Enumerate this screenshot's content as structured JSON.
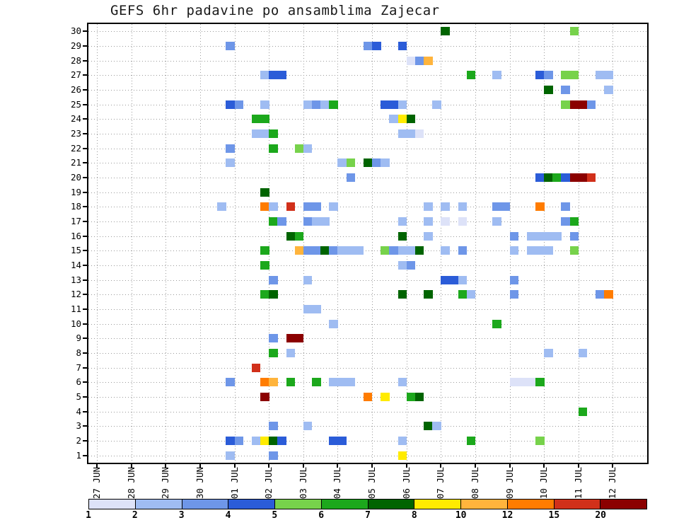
{
  "chart_data": {
    "type": "heatmap",
    "title": "GEFS 6hr padavine po ansamblima Zajecar",
    "x_tick_labels": [
      "27 JUN",
      "28 JUN",
      "29 JUN",
      "30 JUN",
      "01 JUL",
      "02 JUL",
      "03 JUL",
      "04 JUL",
      "05 JUL",
      "06 JUL",
      "07 JUL",
      "08 JUL",
      "09 JUL",
      "10 JUL",
      "11 JUL",
      "12 JUL"
    ],
    "y_tick_labels": [
      "1",
      "2",
      "3",
      "4",
      "5",
      "6",
      "7",
      "8",
      "9",
      "10",
      "11",
      "12",
      "13",
      "14",
      "15",
      "16",
      "17",
      "18",
      "19",
      "20",
      "21",
      "22",
      "23",
      "24",
      "25",
      "26",
      "27",
      "28",
      "29",
      "30"
    ],
    "x_axis": {
      "interval": "1 day",
      "slot_hours": 6,
      "slots_per_day": 4
    },
    "grid": true,
    "cell_format": [
      "ensemble_member",
      "six_hour_slot_from_27JUN00",
      "precip_level_index_1to12"
    ],
    "cells": [
      [
        30,
        40,
        7
      ],
      [
        30,
        55,
        5
      ],
      [
        29,
        15,
        3
      ],
      [
        29,
        31,
        3
      ],
      [
        29,
        32,
        4
      ],
      [
        29,
        35,
        4
      ],
      [
        28,
        36,
        1
      ],
      [
        28,
        37,
        3
      ],
      [
        28,
        38,
        9
      ],
      [
        27,
        19,
        2
      ],
      [
        27,
        20,
        4
      ],
      [
        27,
        21,
        4
      ],
      [
        27,
        43,
        6
      ],
      [
        27,
        46,
        2
      ],
      [
        27,
        51,
        4
      ],
      [
        27,
        52,
        3
      ],
      [
        27,
        54,
        5
      ],
      [
        27,
        55,
        5
      ],
      [
        27,
        58,
        2
      ],
      [
        27,
        59,
        2
      ],
      [
        26,
        52,
        7
      ],
      [
        26,
        54,
        3
      ],
      [
        26,
        59,
        2
      ],
      [
        25,
        15,
        4
      ],
      [
        25,
        16,
        3
      ],
      [
        25,
        19,
        2
      ],
      [
        25,
        24,
        2
      ],
      [
        25,
        25,
        3
      ],
      [
        25,
        26,
        2
      ],
      [
        25,
        27,
        6
      ],
      [
        25,
        33,
        4
      ],
      [
        25,
        34,
        4
      ],
      [
        25,
        35,
        2
      ],
      [
        25,
        39,
        2
      ],
      [
        25,
        54,
        5
      ],
      [
        25,
        55,
        12
      ],
      [
        25,
        56,
        12
      ],
      [
        25,
        57,
        3
      ],
      [
        24,
        18,
        6
      ],
      [
        24,
        19,
        6
      ],
      [
        24,
        34,
        2
      ],
      [
        24,
        35,
        8
      ],
      [
        24,
        36,
        7
      ],
      [
        23,
        18,
        2
      ],
      [
        23,
        19,
        2
      ],
      [
        23,
        20,
        6
      ],
      [
        23,
        35,
        2
      ],
      [
        23,
        36,
        2
      ],
      [
        23,
        37,
        1
      ],
      [
        22,
        15,
        3
      ],
      [
        22,
        20,
        6
      ],
      [
        22,
        23,
        5
      ],
      [
        22,
        24,
        2
      ],
      [
        21,
        15,
        2
      ],
      [
        21,
        28,
        2
      ],
      [
        21,
        29,
        5
      ],
      [
        21,
        31,
        7
      ],
      [
        21,
        32,
        3
      ],
      [
        21,
        33,
        2
      ],
      [
        20,
        29,
        3
      ],
      [
        20,
        51,
        4
      ],
      [
        20,
        52,
        7
      ],
      [
        20,
        53,
        6
      ],
      [
        20,
        54,
        4
      ],
      [
        20,
        55,
        12
      ],
      [
        20,
        56,
        12
      ],
      [
        20,
        57,
        11
      ],
      [
        19,
        19,
        7
      ],
      [
        18,
        14,
        2
      ],
      [
        18,
        19,
        10
      ],
      [
        18,
        20,
        2
      ],
      [
        18,
        22,
        11
      ],
      [
        18,
        24,
        3
      ],
      [
        18,
        25,
        3
      ],
      [
        18,
        27,
        2
      ],
      [
        18,
        38,
        2
      ],
      [
        18,
        40,
        2
      ],
      [
        18,
        42,
        2
      ],
      [
        18,
        46,
        3
      ],
      [
        18,
        47,
        3
      ],
      [
        18,
        51,
        10
      ],
      [
        18,
        54,
        3
      ],
      [
        17,
        20,
        6
      ],
      [
        17,
        21,
        3
      ],
      [
        17,
        24,
        3
      ],
      [
        17,
        25,
        2
      ],
      [
        17,
        26,
        2
      ],
      [
        17,
        35,
        2
      ],
      [
        17,
        38,
        2
      ],
      [
        17,
        40,
        1
      ],
      [
        17,
        42,
        1
      ],
      [
        17,
        46,
        2
      ],
      [
        17,
        54,
        3
      ],
      [
        17,
        55,
        6
      ],
      [
        16,
        22,
        7
      ],
      [
        16,
        23,
        6
      ],
      [
        16,
        35,
        7
      ],
      [
        16,
        38,
        2
      ],
      [
        16,
        48,
        3
      ],
      [
        16,
        50,
        2
      ],
      [
        16,
        51,
        2
      ],
      [
        16,
        52,
        2
      ],
      [
        16,
        53,
        2
      ],
      [
        16,
        55,
        3
      ],
      [
        15,
        19,
        6
      ],
      [
        15,
        23,
        9
      ],
      [
        15,
        24,
        3
      ],
      [
        15,
        25,
        3
      ],
      [
        15,
        26,
        7
      ],
      [
        15,
        27,
        3
      ],
      [
        15,
        28,
        2
      ],
      [
        15,
        29,
        2
      ],
      [
        15,
        30,
        2
      ],
      [
        15,
        33,
        5
      ],
      [
        15,
        34,
        3
      ],
      [
        15,
        35,
        2
      ],
      [
        15,
        36,
        2
      ],
      [
        15,
        37,
        7
      ],
      [
        15,
        40,
        2
      ],
      [
        15,
        42,
        3
      ],
      [
        15,
        48,
        2
      ],
      [
        15,
        50,
        2
      ],
      [
        15,
        51,
        2
      ],
      [
        15,
        52,
        2
      ],
      [
        15,
        55,
        5
      ],
      [
        14,
        19,
        6
      ],
      [
        14,
        35,
        2
      ],
      [
        14,
        36,
        3
      ],
      [
        13,
        20,
        3
      ],
      [
        13,
        24,
        2
      ],
      [
        13,
        40,
        4
      ],
      [
        13,
        41,
        4
      ],
      [
        13,
        42,
        2
      ],
      [
        13,
        48,
        3
      ],
      [
        12,
        19,
        6
      ],
      [
        12,
        20,
        7
      ],
      [
        12,
        35,
        7
      ],
      [
        12,
        38,
        7
      ],
      [
        12,
        42,
        6
      ],
      [
        12,
        43,
        2
      ],
      [
        12,
        48,
        3
      ],
      [
        12,
        58,
        3
      ],
      [
        12,
        59,
        10
      ],
      [
        11,
        24,
        2
      ],
      [
        11,
        25,
        2
      ],
      [
        10,
        27,
        2
      ],
      [
        10,
        46,
        6
      ],
      [
        9,
        20,
        3
      ],
      [
        9,
        22,
        12
      ],
      [
        9,
        23,
        12
      ],
      [
        8,
        20,
        6
      ],
      [
        8,
        22,
        2
      ],
      [
        8,
        52,
        2
      ],
      [
        8,
        56,
        2
      ],
      [
        7,
        18,
        11
      ],
      [
        6,
        15,
        3
      ],
      [
        6,
        19,
        10
      ],
      [
        6,
        20,
        9
      ],
      [
        6,
        22,
        6
      ],
      [
        6,
        25,
        6
      ],
      [
        6,
        27,
        2
      ],
      [
        6,
        28,
        2
      ],
      [
        6,
        29,
        2
      ],
      [
        6,
        35,
        2
      ],
      [
        6,
        48,
        1
      ],
      [
        6,
        49,
        1
      ],
      [
        6,
        50,
        1
      ],
      [
        6,
        51,
        6
      ],
      [
        5,
        19,
        12
      ],
      [
        5,
        31,
        10
      ],
      [
        5,
        33,
        8
      ],
      [
        5,
        36,
        6
      ],
      [
        5,
        37,
        7
      ],
      [
        4,
        56,
        6
      ],
      [
        3,
        20,
        3
      ],
      [
        3,
        24,
        2
      ],
      [
        3,
        38,
        7
      ],
      [
        3,
        39,
        2
      ],
      [
        2,
        15,
        4
      ],
      [
        2,
        16,
        3
      ],
      [
        2,
        18,
        2
      ],
      [
        2,
        19,
        8
      ],
      [
        2,
        20,
        7
      ],
      [
        2,
        21,
        4
      ],
      [
        2,
        27,
        4
      ],
      [
        2,
        28,
        4
      ],
      [
        2,
        35,
        2
      ],
      [
        2,
        43,
        6
      ],
      [
        2,
        51,
        5
      ],
      [
        1,
        15,
        2
      ],
      [
        1,
        20,
        3
      ],
      [
        1,
        35,
        8
      ]
    ],
    "legend": {
      "position": "bottom",
      "tick_labels": [
        "1",
        "2",
        "3",
        "4",
        "5",
        "6",
        "7",
        "8",
        "10",
        "12",
        "15",
        "20"
      ],
      "values": [
        1,
        2,
        3,
        4,
        5,
        6,
        7,
        8,
        10,
        12,
        15,
        20
      ],
      "colors": [
        "#DDE2F8",
        "#9FBCF2",
        "#6E96E8",
        "#2B5CD8",
        "#77D24B",
        "#1CA81C",
        "#006400",
        "#FFEB00",
        "#FFB43C",
        "#FF7C00",
        "#D1301A",
        "#8B0000"
      ]
    }
  }
}
